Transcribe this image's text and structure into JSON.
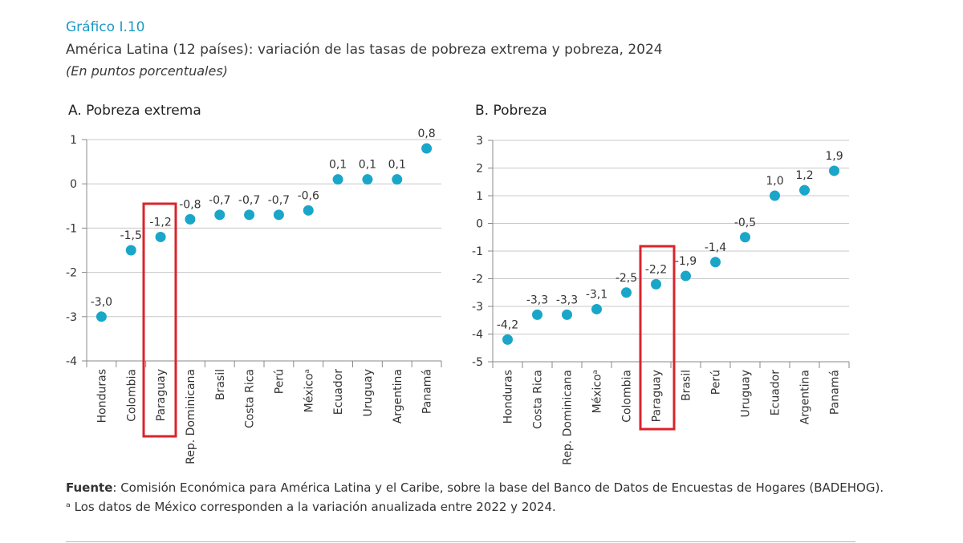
{
  "figure": {
    "label": "Gráfico I.10",
    "title": "América Latina (12 países): variación de las tasas de pobreza extrema y pobreza, 2024",
    "subtitle": "(En puntos porcentuales)"
  },
  "colors": {
    "point": "#1aa6c9",
    "highlight": "#d9242b",
    "grid": "#c8c8c8",
    "label_blue": "#1a9bc4"
  },
  "chart_data": [
    {
      "type": "scatter",
      "title": "A. Pobreza extrema",
      "categories": [
        "Honduras",
        "Colombia",
        "Paraguay",
        "Rep. Dominicana",
        "Brasil",
        "Costa Rica",
        "Perú",
        "Méxicoᵃ",
        "Ecuador",
        "Uruguay",
        "Argentina",
        "Panamá"
      ],
      "values": [
        -3.0,
        -1.5,
        -1.2,
        -0.8,
        -0.7,
        -0.7,
        -0.7,
        -0.6,
        0.1,
        0.1,
        0.1,
        0.8
      ],
      "value_labels": [
        "-3,0",
        "-1,5",
        "-1,2",
        "-0,8",
        "-0,7",
        "-0,7",
        "-0,7",
        "-0,6",
        "0,1",
        "0,1",
        "0,1",
        "0,8"
      ],
      "ylim": [
        -4,
        1
      ],
      "yticks": [
        1,
        0,
        -1,
        -2,
        -3,
        -4
      ],
      "ytick_labels": [
        "1",
        "0",
        "-1",
        "-2",
        "-3",
        "-4"
      ],
      "highlight": "Paraguay",
      "grid": true
    },
    {
      "type": "scatter",
      "title": "B. Pobreza",
      "categories": [
        "Honduras",
        "Costa Rica",
        "Rep. Dominicana",
        "Méxicoᵃ",
        "Colombia",
        "Paraguay",
        "Brasil",
        "Perú",
        "Uruguay",
        "Ecuador",
        "Argentina",
        "Panamá"
      ],
      "values": [
        -4.2,
        -3.3,
        -3.3,
        -3.1,
        -2.5,
        -2.2,
        -1.9,
        -1.4,
        -0.5,
        1.0,
        1.2,
        1.9
      ],
      "value_labels": [
        "-4,2",
        "-3,3",
        "-3,3",
        "-3,1",
        "-2,5",
        "-2,2",
        "-1,9",
        "-1,4",
        "-0,5",
        "1,0",
        "1,2",
        "1,9"
      ],
      "ylim": [
        -5,
        3
      ],
      "yticks": [
        3,
        2,
        1,
        0,
        -1,
        -2,
        -3,
        -4,
        -5
      ],
      "ytick_labels": [
        "3",
        "2",
        "1",
        "0",
        "-1",
        "-2",
        "-3",
        "-4",
        "-5"
      ],
      "highlight": "Paraguay",
      "grid": true
    }
  ],
  "source": {
    "label": "Fuente",
    "text": ":   Comisión Económica para América Latina y el Caribe, sobre la base del Banco de Datos de Encuestas de Hogares (BADEHOG)."
  },
  "footnote": "ᵃ  Los datos de México corresponden a la variación anualizada entre 2022 y 2024."
}
